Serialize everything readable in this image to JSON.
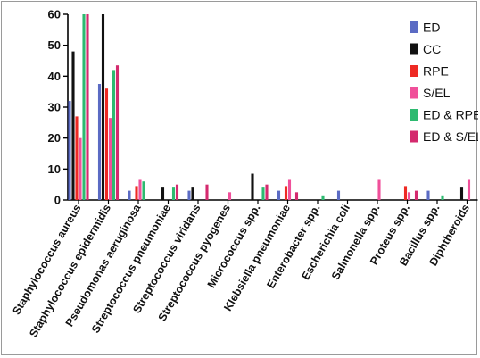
{
  "chart_data": {
    "type": "bar",
    "title": "",
    "xlabel": "",
    "ylabel": "",
    "ylim": [
      0,
      60
    ],
    "yticks": [
      0,
      10,
      20,
      30,
      40,
      50,
      60
    ],
    "grid": false,
    "legend_position": "right",
    "categories": [
      "Staphylococcus aureus",
      "Staphylococcus epidermidis",
      "Pseudomonas aeruginosa",
      "Streptococcus pneumoniae",
      "Streptococcus viridans",
      "Streptococcus pyogenes",
      "Micrococcus spp.",
      "Klebsiella pneumoniae",
      "Enterobacter spp.",
      "Escherichia coli",
      "Salmonella spp.",
      "Proteus spp.",
      "Bacillus spp.",
      "Diphtheroids"
    ],
    "series": [
      {
        "name": "ED",
        "color": "#5b6bc4",
        "values": [
          32,
          37.5,
          3,
          0,
          3,
          0,
          0,
          3,
          0,
          3,
          0,
          0,
          3,
          0
        ]
      },
      {
        "name": "CC",
        "color": "#111111",
        "values": [
          48,
          60,
          0,
          4,
          4,
          0,
          8.5,
          0,
          0,
          0,
          0,
          0,
          0,
          4
        ]
      },
      {
        "name": "RPE",
        "color": "#ee2a24",
        "values": [
          27,
          36,
          4.5,
          0,
          0,
          0,
          0,
          4.5,
          0,
          0,
          0,
          4.5,
          0,
          0
        ]
      },
      {
        "name": "S/EL",
        "color": "#f0509a",
        "values": [
          20,
          26.5,
          6.5,
          0,
          0,
          2.5,
          0,
          6.5,
          0,
          0,
          6.5,
          2.5,
          0,
          6.5
        ]
      },
      {
        "name": "ED & RPE",
        "color": "#2dba70",
        "values": [
          60,
          42,
          6,
          4,
          0,
          0,
          4,
          0,
          1.5,
          0,
          0,
          0,
          1.5,
          0
        ]
      },
      {
        "name": "ED & S/EL",
        "color": "#d42a6e",
        "values": [
          60,
          43.5,
          0,
          5,
          5,
          0,
          5,
          2.5,
          0,
          0,
          0,
          3,
          0,
          0
        ]
      }
    ]
  }
}
